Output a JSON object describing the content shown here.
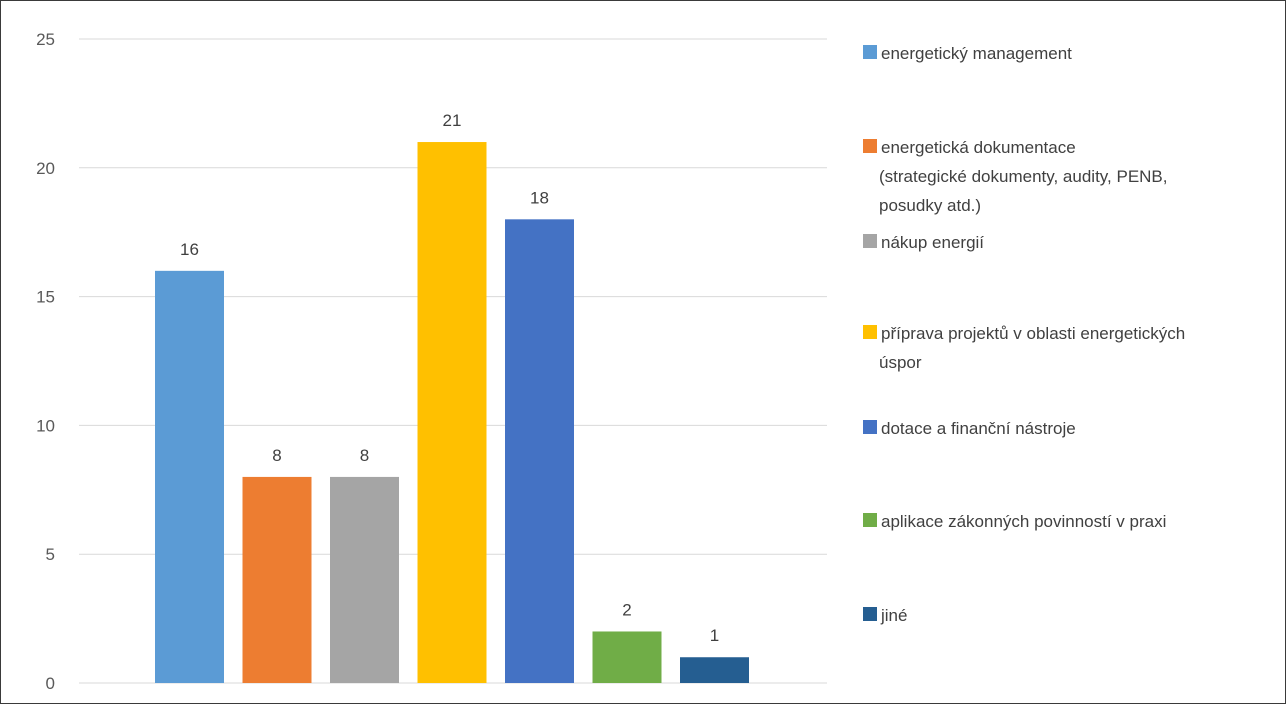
{
  "chart_data": {
    "type": "bar",
    "title": "",
    "xlabel": "",
    "ylabel": "",
    "ylim": [
      0,
      25
    ],
    "yticks": [
      0,
      5,
      10,
      15,
      20,
      25
    ],
    "grid": true,
    "legend_position": "right",
    "show_data_labels": true,
    "categories": [
      "energetický management",
      "energetická dokumentace (strategické dokumenty, audity, PENB, posudky atd.)",
      "nákup energií",
      "příprava projektů v oblasti energetických úspor",
      "dotace a finanční nástroje",
      "aplikace zákonných povinností v praxi",
      "jiné"
    ],
    "legend_lines": [
      [
        "energetický management"
      ],
      [
        "energetická dokumentace",
        "(strategické dokumenty, audity, PENB,",
        "posudky atd.)"
      ],
      [
        "nákup energií"
      ],
      [
        "příprava projektů v oblasti energetických",
        "úspor"
      ],
      [
        "dotace a finanční nástroje"
      ],
      [
        "aplikace zákonných povinností v praxi"
      ],
      [
        "jiné"
      ]
    ],
    "values": [
      16,
      8,
      8,
      21,
      18,
      2,
      1
    ],
    "colors": [
      "#5b9bd5",
      "#ed7d31",
      "#a5a5a5",
      "#ffc000",
      "#4472c4",
      "#70ad47",
      "#255e91"
    ]
  }
}
